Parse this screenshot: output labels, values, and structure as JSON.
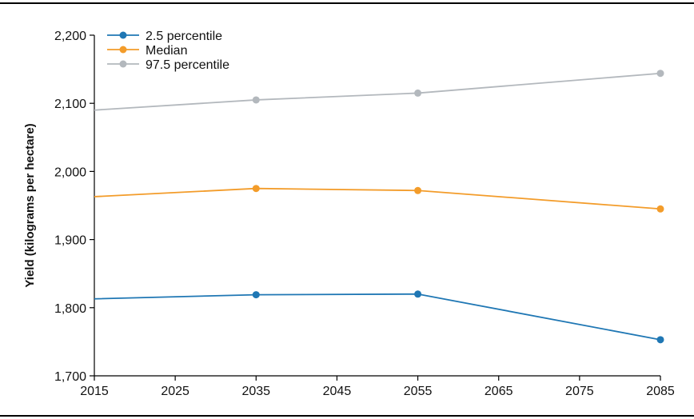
{
  "chart_data": {
    "type": "line",
    "title": "",
    "xlabel": "",
    "ylabel": "Yield (kilograms per hectare)",
    "x": [
      2015,
      2035,
      2055,
      2085
    ],
    "xlim": [
      2015,
      2085
    ],
    "ylim": [
      1700,
      2200
    ],
    "xticks": [
      2015,
      2025,
      2035,
      2045,
      2055,
      2065,
      2075,
      2085
    ],
    "yticks": [
      1700,
      1800,
      1900,
      2000,
      2100,
      2200
    ],
    "ytick_labels": [
      "1,700",
      "1,800",
      "1,900",
      "2,000",
      "2,100",
      "2,200"
    ],
    "grid": false,
    "legend_position": "top-left",
    "series": [
      {
        "name": "2.5 percentile",
        "color": "#1f77b4",
        "values": [
          1813,
          1819,
          1820,
          1753
        ],
        "markers": [
          false,
          true,
          true,
          true
        ]
      },
      {
        "name": "Median",
        "color": "#f39c2a",
        "values": [
          1963,
          1975,
          1972,
          1945
        ],
        "markers": [
          false,
          true,
          true,
          true
        ]
      },
      {
        "name": "97.5 percentile",
        "color": "#b3b8bd",
        "values": [
          2090,
          2105,
          2115,
          2144
        ],
        "markers": [
          false,
          true,
          true,
          true
        ]
      }
    ]
  }
}
